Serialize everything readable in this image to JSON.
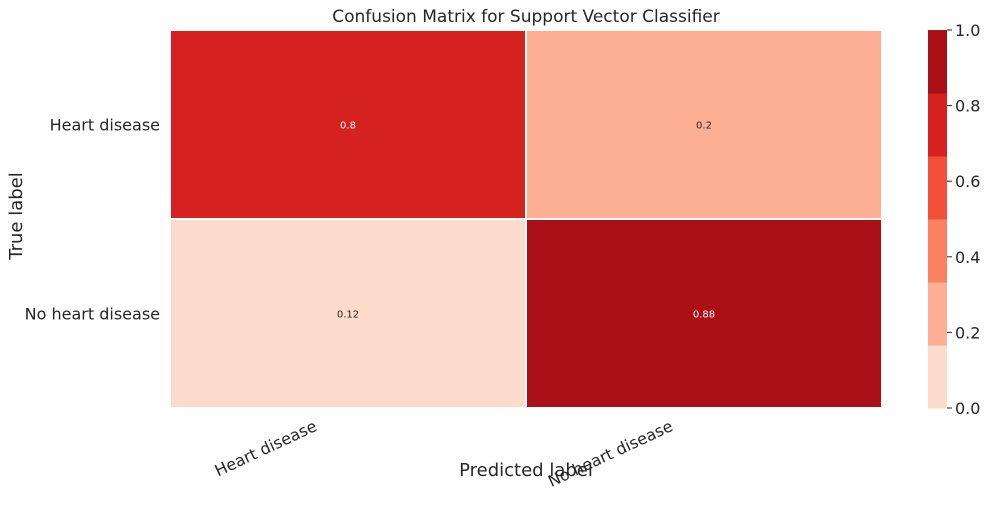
{
  "chart_data": {
    "type": "heatmap",
    "title": "Confusion Matrix for Support Vector Classifier",
    "xlabel": "Predicted label",
    "ylabel": "True label",
    "x_categories": [
      "Heart disease",
      "No heart disease"
    ],
    "y_categories": [
      "Heart disease",
      "No heart disease"
    ],
    "values": [
      [
        0.8,
        0.2
      ],
      [
        0.12,
        0.88
      ]
    ],
    "value_labels": [
      [
        "0.8",
        "0.2"
      ],
      [
        "0.12",
        "0.88"
      ]
    ],
    "colorbar": {
      "range": [
        0,
        1
      ],
      "ticks": [
        "0.0",
        "0.2",
        "0.4",
        "0.6",
        "0.8",
        "1.0"
      ],
      "colors": [
        "#fddbcb",
        "#fcaf93",
        "#fc8161",
        "#f44f39",
        "#d52221",
        "#aa1016"
      ]
    },
    "grid": false
  }
}
